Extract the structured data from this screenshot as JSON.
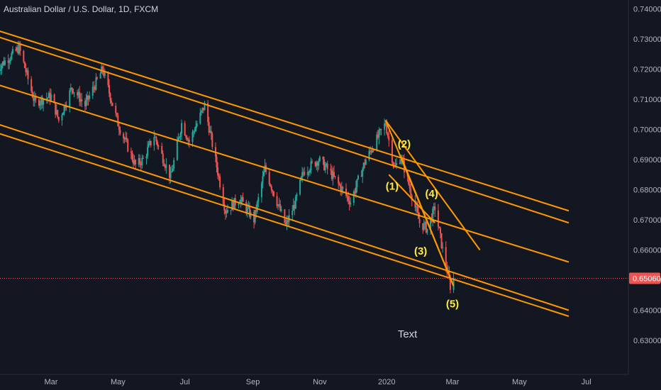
{
  "header": {
    "title": "Australian Dollar / U.S. Dollar, 1D, FXCM"
  },
  "colors": {
    "background": "#131722",
    "up": "#26a69a",
    "down": "#ef5350",
    "trendline": "#ff9800",
    "wave": "#ffeb3b",
    "current_price": "#ef5350"
  },
  "chart_data": {
    "type": "candlestick",
    "title": "Australian Dollar / U.S. Dollar, 1D, FXCM",
    "symbol": "AUD/USD",
    "interval": "1D",
    "source": "FXCM",
    "ylim": [
      0.62,
      0.742
    ],
    "y_ticks": [
      "0.74000",
      "0.73000",
      "0.72000",
      "0.71000",
      "0.70000",
      "0.69000",
      "0.68000",
      "0.67000",
      "0.66000",
      "0.65000",
      "0.64000",
      "0.63000"
    ],
    "x_ticks": [
      "Mar",
      "May",
      "Jul",
      "Sep",
      "Nov",
      "2020",
      "Mar",
      "May",
      "Jul"
    ],
    "x_tick_dates": [
      "2019-03-01",
      "2019-05-01",
      "2019-07-01",
      "2019-09-01",
      "2019-11-01",
      "2020-01-01",
      "2020-03-01",
      "2020-05-01",
      "2020-07-01"
    ],
    "current_price": "0.65060",
    "price_path": [
      [
        "2019-01-10",
        0.72
      ],
      [
        "2019-01-31",
        0.727
      ],
      [
        "2019-02-14",
        0.709
      ],
      [
        "2019-03-01",
        0.711
      ],
      [
        "2019-03-08",
        0.703
      ],
      [
        "2019-03-20",
        0.714
      ],
      [
        "2019-04-01",
        0.708
      ],
      [
        "2019-04-17",
        0.72
      ],
      [
        "2019-05-01",
        0.702
      ],
      [
        "2019-05-17",
        0.688
      ],
      [
        "2019-05-24",
        0.69
      ],
      [
        "2019-06-03",
        0.698
      ],
      [
        "2019-06-18",
        0.684
      ],
      [
        "2019-06-28",
        0.702
      ],
      [
        "2019-07-05",
        0.696
      ],
      [
        "2019-07-19",
        0.708
      ],
      [
        "2019-08-07",
        0.673
      ],
      [
        "2019-08-20",
        0.677
      ],
      [
        "2019-09-02",
        0.67
      ],
      [
        "2019-09-12",
        0.687
      ],
      [
        "2019-10-01",
        0.668
      ],
      [
        "2019-10-10",
        0.676
      ],
      [
        "2019-10-17",
        0.686
      ],
      [
        "2019-10-31",
        0.69
      ],
      [
        "2019-11-10",
        0.686
      ],
      [
        "2019-11-29",
        0.676
      ],
      [
        "2019-12-13",
        0.69
      ],
      [
        "2019-12-31",
        0.702
      ],
      [
        "2020-01-08",
        0.687
      ],
      [
        "2020-01-14",
        0.691
      ],
      [
        "2020-01-31",
        0.669
      ],
      [
        "2020-02-07",
        0.667
      ],
      [
        "2020-02-14",
        0.674
      ],
      [
        "2020-02-21",
        0.66
      ],
      [
        "2020-02-28",
        0.648
      ],
      [
        "2020-03-02",
        0.6506
      ]
    ],
    "trendlines": [
      {
        "from": [
          "2019-01-01",
          0.734
        ],
        "to": [
          "2020-06-15",
          0.673
        ]
      },
      {
        "from": [
          "2019-01-01",
          0.732
        ],
        "to": [
          "2020-06-15",
          0.669
        ]
      },
      {
        "from": [
          "2019-01-01",
          0.716
        ],
        "to": [
          "2020-06-15",
          0.656
        ]
      },
      {
        "from": [
          "2019-01-01",
          0.703
        ],
        "to": [
          "2020-06-15",
          0.64
        ]
      },
      {
        "from": [
          "2019-01-01",
          0.7
        ],
        "to": [
          "2020-06-15",
          0.638
        ]
      },
      {
        "from": [
          "2019-12-31",
          0.703
        ],
        "to": [
          "2020-03-26",
          0.66
        ]
      },
      {
        "from": [
          "2019-12-31",
          0.703
        ],
        "to": [
          "2020-03-02",
          0.648
        ]
      },
      {
        "from": [
          "2020-01-03",
          0.685
        ],
        "to": [
          "2020-02-14",
          0.669
        ]
      },
      {
        "from": [
          "2020-01-14",
          0.691
        ],
        "to": [
          "2020-03-02",
          0.648
        ]
      }
    ],
    "waves": [
      {
        "label": "(1)",
        "date": "2020-01-06",
        "price": 0.68
      },
      {
        "label": "(2)",
        "date": "2020-01-17",
        "price": 0.694
      },
      {
        "label": "(3)",
        "date": "2020-02-01",
        "price": 0.6585
      },
      {
        "label": "(4)",
        "date": "2020-02-11",
        "price": 0.6775
      },
      {
        "label": "(5)",
        "date": "2020-03-01",
        "price": 0.641
      }
    ],
    "annotations": [
      {
        "text": "Text",
        "date": "2020-01-20",
        "price": 0.631
      }
    ]
  }
}
